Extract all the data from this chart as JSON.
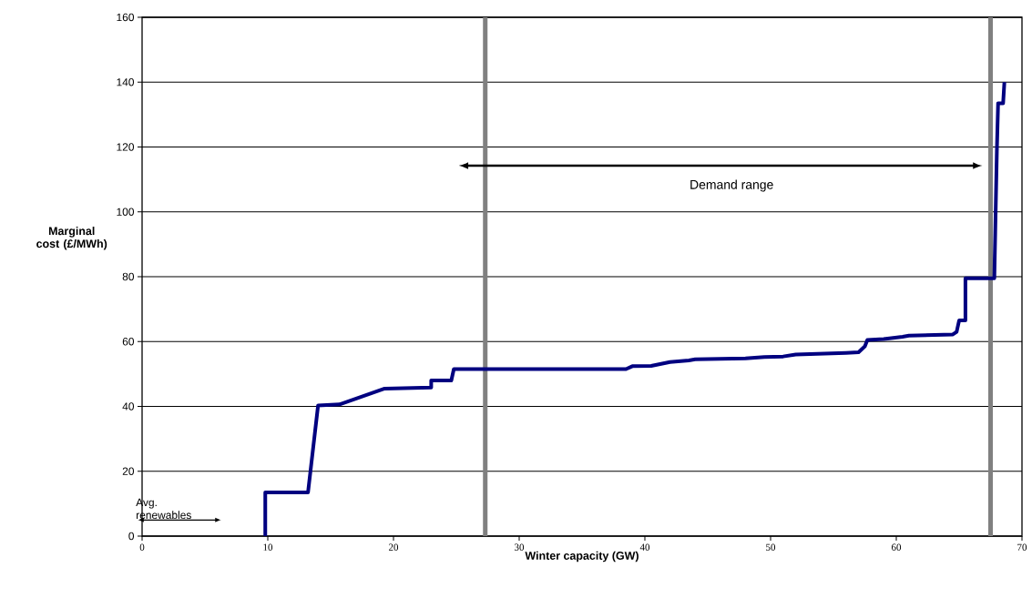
{
  "chart_data": {
    "type": "line",
    "xlabel": "Winter capacity (GW)",
    "ylabel": "Marginal cost (£/MWh)",
    "xlim": [
      0,
      70
    ],
    "ylim": [
      0,
      160
    ],
    "xticks": [
      0,
      10,
      20,
      30,
      40,
      50,
      60,
      70
    ],
    "yticks": [
      0,
      20,
      40,
      60,
      80,
      100,
      120,
      140,
      160
    ],
    "grid": "y",
    "marker": "none",
    "line_style": "solid",
    "series": [
      {
        "color": "#000080",
        "x": [
          9.8,
          9.8,
          13.2,
          14,
          15.7,
          19.3,
          23,
          23,
          24.6,
          24.8,
          38.5,
          39,
          40.5,
          42,
          43.5,
          44,
          48,
          49.5,
          51,
          52,
          56,
          57,
          57.5,
          57.7,
          59,
          60.5,
          61,
          64.5,
          64.8,
          65.0,
          65.5,
          65.5,
          67.8,
          68.0,
          68.1,
          68.5,
          68.6
        ],
        "values": [
          0,
          13.5,
          13.5,
          40.3,
          40.6,
          45.5,
          45.8,
          48,
          48,
          51.5,
          51.5,
          52.4,
          52.5,
          53.7,
          54.2,
          54.5,
          54.8,
          55.2,
          55.4,
          56,
          56.5,
          56.7,
          58.5,
          60.5,
          60.8,
          61.5,
          61.8,
          62.2,
          63,
          66.5,
          66.5,
          79.5,
          79.5,
          118.5,
          133.5,
          133.5,
          140
        ]
      }
    ],
    "ref_lines": [
      {
        "axis": "x",
        "value": 27.3,
        "color": "#808080"
      },
      {
        "axis": "x",
        "value": 67.5,
        "color": "#808080"
      }
    ],
    "annotations": [
      "Avg. renewables",
      "Demand range"
    ]
  }
}
